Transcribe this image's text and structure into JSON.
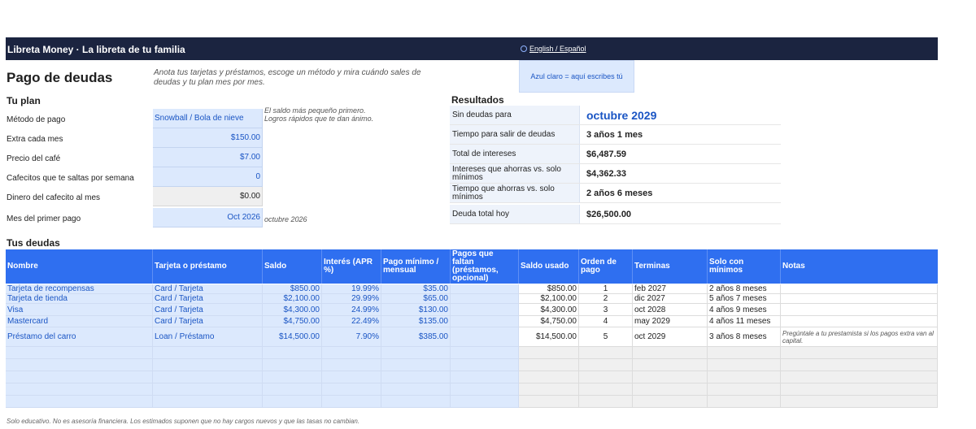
{
  "header": {
    "brand": "Libreta Money  ·  La libreta de tu familia",
    "language_link": "English / Español"
  },
  "page": {
    "title": "Pago de deudas",
    "intro": "Anota tus tarjetas y préstamos, escoge un método y mira cuándo sales de deudas y tu plan mes por mes.",
    "legend": "Azul claro = aquí escribes tú"
  },
  "plan": {
    "heading": "Tu plan",
    "rows": [
      {
        "label": "Método de pago",
        "value": "Snowball / Bola de nieve"
      },
      {
        "label": "Extra cada mes",
        "value": "$150.00"
      },
      {
        "label": "Precio del café",
        "value": "$7.00"
      },
      {
        "label": "Cafecitos que te saltas por semana",
        "value": "0"
      },
      {
        "label": "Dinero del cafecito al mes",
        "value": "$0.00"
      },
      {
        "label": "Mes del primer pago",
        "value": "Oct 2026"
      }
    ],
    "method_note": [
      "El saldo más pequeño primero.",
      "Logros rápidos que te dan ánimo."
    ],
    "first_payment_note": "octubre 2026"
  },
  "results": {
    "heading": "Resultados",
    "rows": [
      {
        "label": "Sin deudas para",
        "value": "octubre 2029"
      },
      {
        "label": "Tiempo para salir de deudas",
        "value": "3 años 1 mes"
      },
      {
        "label": "Total de intereses",
        "value": "$6,487.59"
      },
      {
        "label": "Intereses que ahorras vs. solo mínimos",
        "value": "$4,362.33"
      },
      {
        "label": "Tiempo que ahorras vs. solo mínimos",
        "value": "2 años 6 meses"
      },
      {
        "label": "Deuda total hoy",
        "value": "$26,500.00"
      }
    ]
  },
  "debts": {
    "heading": "Tus deudas",
    "columns": [
      "Nombre",
      "Tarjeta o préstamo",
      "Saldo",
      "Interés (APR %)",
      "Pago mínimo / mensual",
      "Pagos que faltan (préstamos, opcional)",
      "Saldo usado",
      "Orden de pago",
      "Terminas",
      "Solo con mínimos",
      "Notas"
    ],
    "rows": [
      [
        "Tarjeta de recompensas",
        "Card / Tarjeta",
        "$850.00",
        "19.99%",
        "$35.00",
        "",
        "$850.00",
        "1",
        "feb 2027",
        "2 años 8 meses",
        ""
      ],
      [
        "Tarjeta de tienda",
        "Card / Tarjeta",
        "$2,100.00",
        "29.99%",
        "$65.00",
        "",
        "$2,100.00",
        "2",
        "dic 2027",
        "5 años 7 meses",
        ""
      ],
      [
        "Visa",
        "Card / Tarjeta",
        "$4,300.00",
        "24.99%",
        "$130.00",
        "",
        "$4,300.00",
        "3",
        "oct 2028",
        "4 años 9 meses",
        ""
      ],
      [
        "Mastercard",
        "Card / Tarjeta",
        "$4,750.00",
        "22.49%",
        "$135.00",
        "",
        "$4,750.00",
        "4",
        "may 2029",
        "4 años 11 meses",
        ""
      ],
      [
        "Préstamo del carro",
        "Loan / Préstamo",
        "$14,500.00",
        "7.90%",
        "$385.00",
        "",
        "$14,500.00",
        "5",
        "oct 2029",
        "3 años 8 meses",
        "Pregúntale a tu prestamista si los pagos extra van al capital."
      ],
      [
        "",
        "",
        "",
        "",
        "",
        "",
        "",
        "",
        "",
        "",
        ""
      ],
      [
        "",
        "",
        "",
        "",
        "",
        "",
        "",
        "",
        "",
        "",
        ""
      ],
      [
        "",
        "",
        "",
        "",
        "",
        "",
        "",
        "",
        "",
        "",
        ""
      ],
      [
        "",
        "",
        "",
        "",
        "",
        "",
        "",
        "",
        "",
        "",
        ""
      ],
      [
        "",
        "",
        "",
        "",
        "",
        "",
        "",
        "",
        "",
        "",
        ""
      ]
    ]
  },
  "footer": "Solo educativo. No es asesoría financiera. Los estimados suponen que no hay cargos nuevos y que las tasas no cambian."
}
